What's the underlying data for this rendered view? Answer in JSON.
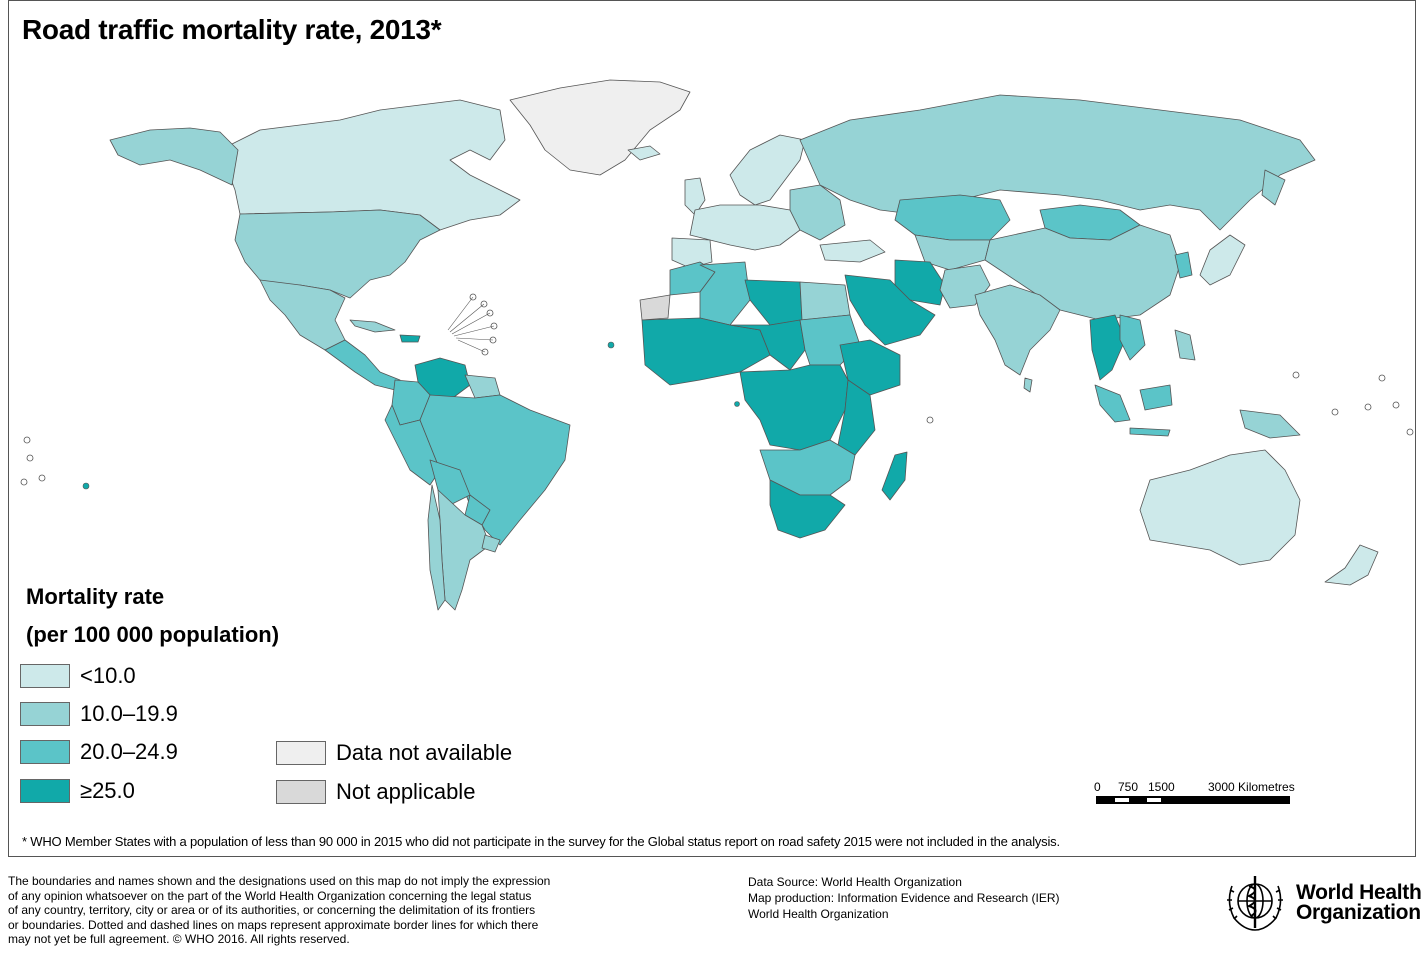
{
  "title": "Road traffic mortality rate, 2013*",
  "legend": {
    "title_line1": "Mortality rate",
    "title_line2": "(per 100 000 population)",
    "items": [
      {
        "label": "<10.0",
        "color": "#cde9ea"
      },
      {
        "label": "10.0–19.9",
        "color": "#96d3d5"
      },
      {
        "label": "20.0–24.9",
        "color": "#5bc4c8"
      },
      {
        "label": "≥25.0",
        "color": "#11a9a9"
      },
      {
        "label": "Data not available",
        "color": "#efefef"
      },
      {
        "label": "Not applicable",
        "color": "#d9d9d9"
      }
    ]
  },
  "scale": {
    "labels": [
      "0",
      "750",
      "1500",
      "3000 Kilometres"
    ]
  },
  "footnote": "* WHO Member States with a population of less than 90 000 in 2015 who did not participate in the survey for the Global status report on road safety 2015 were not included in the analysis.",
  "disclaimer": {
    "lines": [
      "The boundaries and names shown and the designations used on this map do not imply the expression",
      "of any opinion whatsoever on the part of the World Health Organization concerning the legal status",
      "of any country, territory, city or area or of its authorities, or concerning the delimitation of its frontiers",
      "or boundaries. Dotted and dashed lines on maps represent approximate border lines for which there",
      "may not yet be full agreement. © WHO 2016. All rights reserved."
    ]
  },
  "source": {
    "lines": [
      "Data Source: World Health Organization",
      "Map production: Information Evidence and Research (IER)",
      "World Health Organization"
    ]
  },
  "logo": {
    "line1": "World Health",
    "line2": "Organization",
    "color": "#000000"
  },
  "colors": {
    "c1": "#cde9ea",
    "c2": "#96d3d5",
    "c3": "#5bc4c8",
    "c4": "#11a9a9",
    "na": "#efefef",
    "notapp": "#d9d9d9",
    "border": "#555555"
  }
}
